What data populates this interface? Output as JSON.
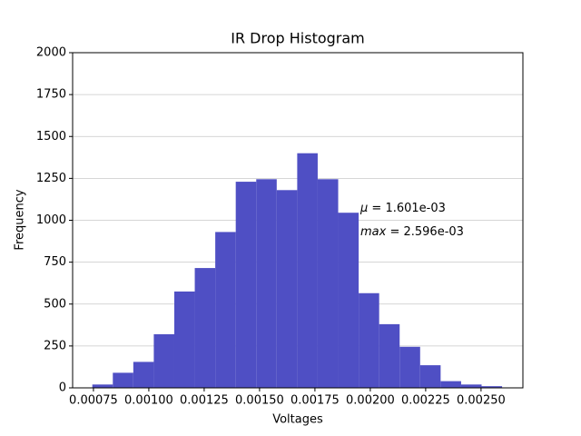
{
  "chart_data": {
    "type": "histogram",
    "title": "IR Drop Histogram",
    "xlabel": "Voltages",
    "ylabel": "Frequency",
    "bins": [
      0.000745,
      0.0008375,
      0.00093,
      0.0010225,
      0.001115,
      0.0012075,
      0.0013,
      0.0013925,
      0.001485,
      0.0015775,
      0.00167,
      0.0017625,
      0.001855,
      0.0019475,
      0.00204,
      0.0021325,
      0.002225,
      0.0023175,
      0.00241,
      0.0025025,
      0.002595
    ],
    "values": [
      20,
      90,
      155,
      320,
      575,
      715,
      930,
      1230,
      1245,
      1180,
      1400,
      1245,
      1045,
      565,
      380,
      245,
      135,
      40,
      20,
      10
    ],
    "color": "#4f4fc4",
    "xlim": [
      0.000656,
      0.002689
    ],
    "ylim": [
      0,
      2000
    ],
    "xticks": [
      0.00075,
      {
        "value": 0.001,
        "label": "0.00100"
      },
      0.00125,
      {
        "value": 0.0015,
        "label": "0.00150"
      },
      0.00175,
      {
        "value": 0.002,
        "label": "0.00200"
      },
      0.00225,
      {
        "value": 0.0025,
        "label": "0.00250"
      }
    ],
    "yticks": [
      0,
      250,
      500,
      750,
      1000,
      1250,
      1500,
      1750,
      2000
    ],
    "grid": "y",
    "annotations": [
      {
        "symbol": "μ",
        "text": " = 1.601e-03"
      },
      {
        "symbol": "max",
        "text": " = 2.596e-03"
      }
    ]
  }
}
